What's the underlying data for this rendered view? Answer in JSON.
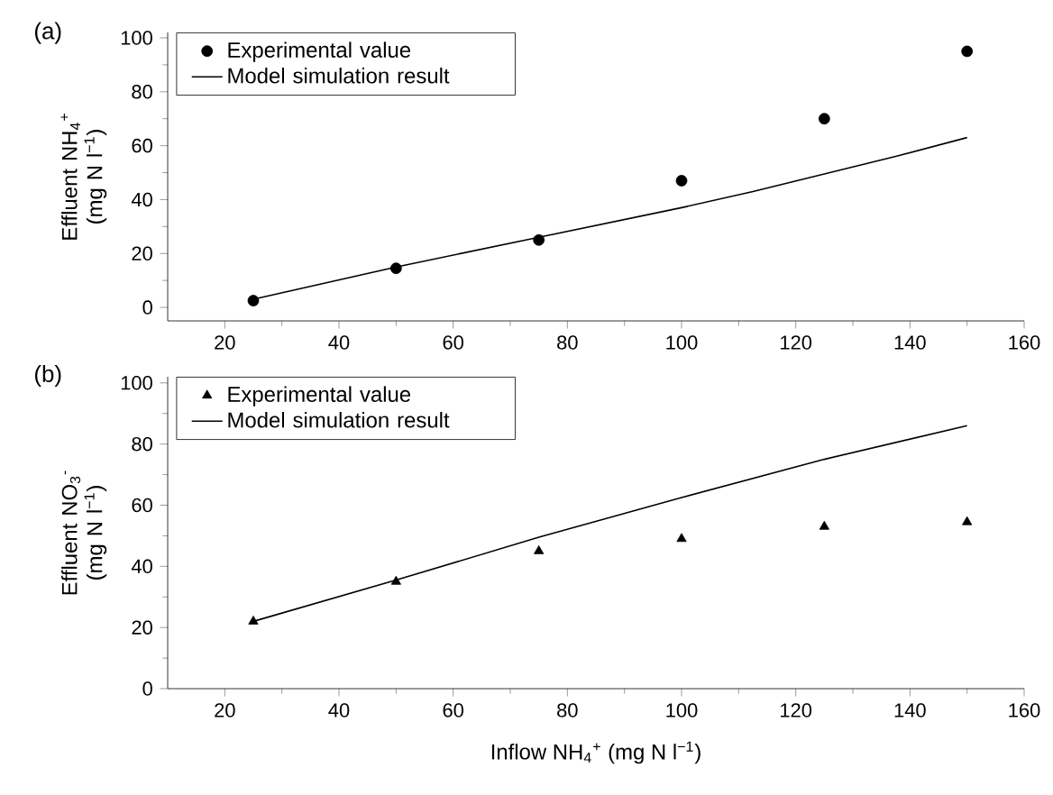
{
  "chart_data": [
    {
      "type": "line",
      "annotations": [
        "(a)"
      ],
      "ylabel": "Effluent NH$_{4}$$^{+}$ (mg N l$^{−1}$)",
      "xlim": [
        10,
        160
      ],
      "ylim": [
        -5,
        102
      ],
      "xticks": [
        20,
        40,
        60,
        80,
        100,
        120,
        140,
        160
      ],
      "yticks": [
        0,
        20,
        40,
        60,
        80,
        100
      ],
      "legend": "top left",
      "series": [
        {
          "name": "Experimental value",
          "type": "scatter",
          "marker": "circle",
          "color": "#000000",
          "x": [
            25,
            50,
            75,
            100,
            125,
            150
          ],
          "values": [
            2.5,
            14.5,
            25,
            47,
            70,
            95
          ]
        },
        {
          "name": "Model simulation result",
          "type": "line",
          "marker": "none",
          "color": "#000000",
          "x": [
            25,
            50,
            75,
            100,
            112.5,
            125,
            137.5,
            150
          ],
          "values": [
            3,
            15,
            26,
            37,
            43,
            49.5,
            56,
            63
          ]
        }
      ]
    },
    {
      "type": "line",
      "annotations": [
        "(b)"
      ],
      "ylabel": "Effluent NO$_{3}$$^{-}$ (mg N l$^{−1}$)",
      "xlabel": "Inflow NH$_{4}$$^{+}$ (mg N l$^{−1}$)",
      "xlim": [
        10,
        160
      ],
      "ylim": [
        0,
        102
      ],
      "xticks": [
        20,
        40,
        60,
        80,
        100,
        120,
        140,
        160
      ],
      "yticks": [
        0,
        20,
        40,
        60,
        80,
        100
      ],
      "legend": "top left",
      "series": [
        {
          "name": "Experimental value",
          "type": "scatter",
          "marker": "triangle",
          "color": "#000000",
          "x": [
            25,
            50,
            75,
            100,
            125,
            150
          ],
          "values": [
            22,
            35,
            45,
            49,
            53,
            54.5
          ]
        },
        {
          "name": "Model simulation result",
          "type": "line",
          "marker": "none",
          "color": "#000000",
          "x": [
            25,
            50,
            75,
            100,
            125,
            150
          ],
          "values": [
            22,
            35.5,
            49.5,
            62.5,
            75,
            86
          ]
        }
      ]
    }
  ]
}
